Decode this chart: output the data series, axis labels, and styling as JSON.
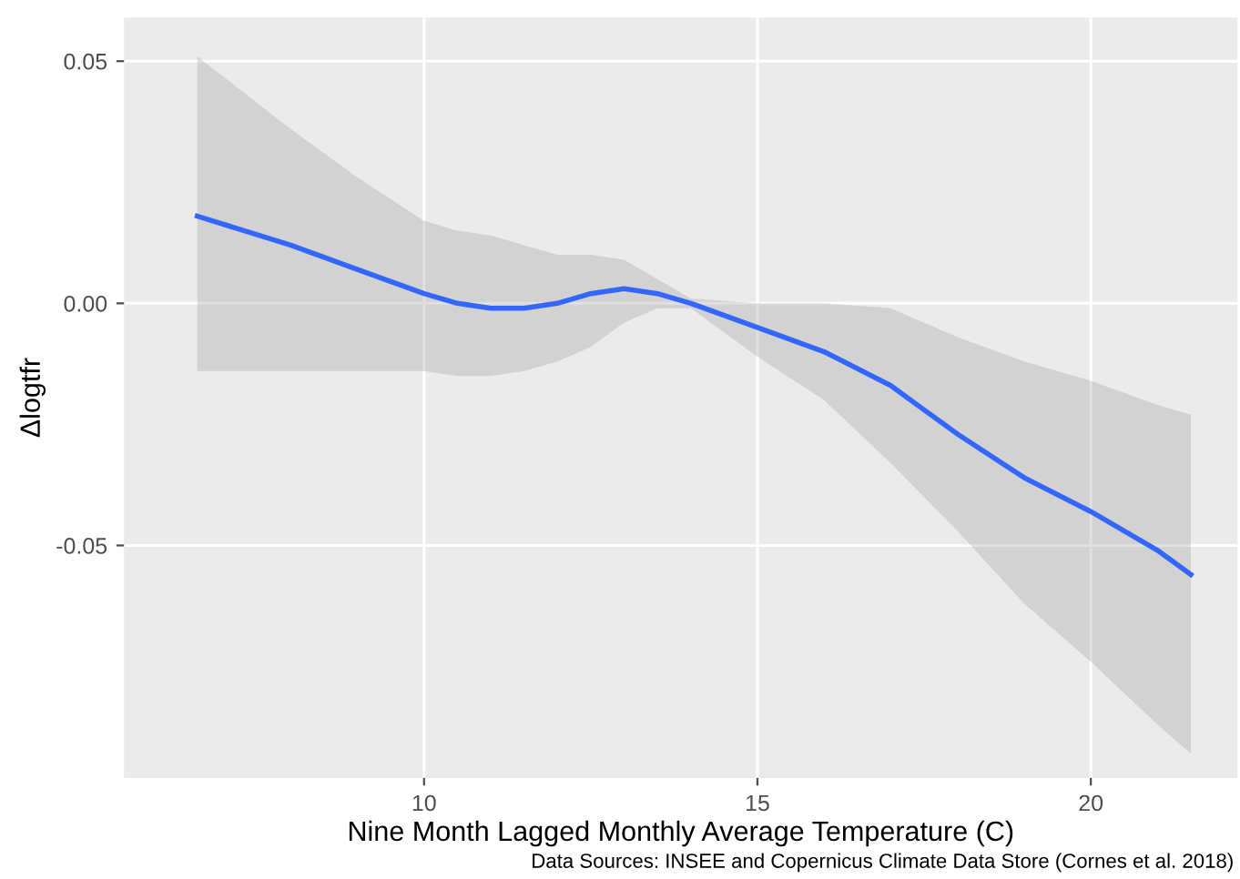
{
  "chart_data": {
    "type": "line",
    "xlabel": "Nine Month Lagged Monthly Average Temperature (C)",
    "ylabel": "Δlogtfr",
    "annotations": [
      "Data Sources: INSEE and Copernicus Climate Data Store (Cornes et al. 2018)"
    ],
    "xlim": [
      5.5,
      22.2
    ],
    "ylim": [
      -0.098,
      0.059
    ],
    "xticks": [
      10,
      15,
      20
    ],
    "yticks": [
      {
        "value": 0.05,
        "label": "0.05"
      },
      {
        "value": 0.0,
        "label": "0.00"
      },
      {
        "value": -0.05,
        "label": "-0.05"
      }
    ],
    "grid": true,
    "marker": "none",
    "line_style": "solid",
    "series": [
      {
        "color": "#3366ff",
        "x": [
          6.6,
          8,
          9,
          10,
          10.5,
          11,
          11.5,
          12,
          12.5,
          13,
          13.5,
          14,
          15,
          16,
          17,
          18,
          19,
          20,
          21,
          21.5
        ],
        "values": [
          0.018,
          0.012,
          0.007,
          0.002,
          0.0,
          -0.001,
          -0.001,
          0.0,
          0.002,
          0.003,
          0.002,
          0.0,
          -0.005,
          -0.01,
          -0.017,
          -0.027,
          -0.036,
          -0.043,
          -0.051,
          -0.056
        ],
        "upper": [
          0.051,
          0.036,
          0.026,
          0.017,
          0.015,
          0.014,
          0.012,
          0.01,
          0.01,
          0.009,
          0.005,
          0.001,
          0.0,
          0.0,
          -0.001,
          -0.007,
          -0.012,
          -0.016,
          -0.021,
          -0.023
        ],
        "lower": [
          -0.014,
          -0.014,
          -0.014,
          -0.014,
          -0.015,
          -0.015,
          -0.014,
          -0.012,
          -0.009,
          -0.004,
          -0.001,
          -0.001,
          -0.011,
          -0.02,
          -0.033,
          -0.047,
          -0.062,
          -0.074,
          -0.087,
          -0.093
        ]
      }
    ]
  }
}
